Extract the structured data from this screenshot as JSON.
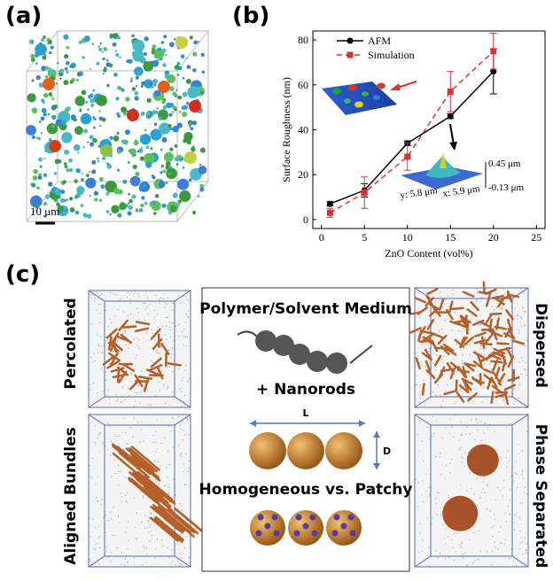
{
  "chart_data": {
    "type": "line",
    "y_label": "Surface Roughness (nm)",
    "x_label": "ZnO Content (vol%)",
    "x": [
      1,
      5,
      10,
      15,
      20
    ],
    "series": [
      {
        "name": "AFM",
        "color": "#000000",
        "values": [
          7,
          13,
          34,
          46,
          66
        ],
        "errors": [
          1,
          3,
          1,
          1,
          10
        ]
      },
      {
        "name": "Simulation",
        "color": "#e0302f",
        "values": [
          3,
          12,
          28,
          57,
          75
        ],
        "errors": [
          2,
          7,
          6,
          9,
          8
        ]
      }
    ],
    "xlim": [
      -1,
      26
    ],
    "ylim": [
      -4,
      84
    ],
    "xticks": [
      0,
      5,
      10,
      15,
      20,
      25
    ],
    "yticks": [
      0,
      20,
      40,
      60,
      80
    ],
    "annotations": [
      "0.45 μm",
      "-0.13 μm",
      "y: 5.8 μm",
      "x: 5.9 μm"
    ]
  },
  "figure": {
    "panel_a": {
      "label": "(a)",
      "scale_bar": "10 μm"
    },
    "panel_b": {
      "label": "(b)"
    },
    "panel_c": {
      "label": "(c)",
      "left_labels": [
        "Percolated",
        "Aligned Bundles"
      ],
      "right_labels": [
        "Dispersed",
        "Phase Separated"
      ],
      "center": {
        "medium": "Polymer/Solvent Medium",
        "nanorods": "+ Nanorods",
        "length": "L",
        "diameter": "D",
        "comparison": "Homogeneous vs. Patchy"
      }
    }
  }
}
